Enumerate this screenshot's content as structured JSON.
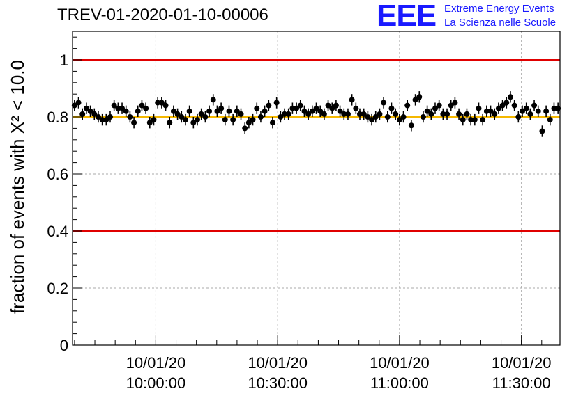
{
  "title": "TREV-01-2020-01-10-00006",
  "logo": {
    "mark": "EEE",
    "line1": "Extreme Energy Events",
    "line2": "La Scienza nelle Scuole",
    "color": "#1a1aff"
  },
  "chart_data": {
    "type": "scatter",
    "title": "TREV-01-2020-01-10-00006",
    "ylabel": "fraction of events with X² < 10.0",
    "xlabel": "",
    "ylim": [
      0,
      1.1
    ],
    "xlim_minutes_from_10_00": [
      -20.5,
      99.5
    ],
    "grid": true,
    "y_ticks": [
      "0",
      "0.2",
      "0.4",
      "0.6",
      "0.8",
      "1"
    ],
    "x_ticks": [
      {
        "minute": 0,
        "date": "10/01/20",
        "time": "10:00:00"
      },
      {
        "minute": 30,
        "date": "10/01/20",
        "time": "10:30:00"
      },
      {
        "minute": 60,
        "date": "10/01/20",
        "time": "11:00:00"
      },
      {
        "minute": 90,
        "date": "10/01/20",
        "time": "11:30:00"
      }
    ],
    "reference_lines": [
      {
        "y": 1.0,
        "color": "#e00000"
      },
      {
        "y": 0.4,
        "color": "#e00000"
      },
      {
        "y": 0.8,
        "color": "#f5b800"
      }
    ],
    "error": 0.02,
    "series": [
      {
        "values": [
          0.84,
          0.85,
          0.81,
          0.83,
          0.82,
          0.81,
          0.8,
          0.79,
          0.79,
          0.8,
          0.84,
          0.83,
          0.83,
          0.82,
          0.8,
          0.78,
          0.82,
          0.84,
          0.83,
          0.78,
          0.79,
          0.85,
          0.85,
          0.84,
          0.78,
          0.82,
          0.81,
          0.8,
          0.79,
          0.82,
          0.78,
          0.79,
          0.81,
          0.8,
          0.82,
          0.86,
          0.82,
          0.83,
          0.79,
          0.82,
          0.79,
          0.82,
          0.81,
          0.76,
          0.78,
          0.79,
          0.83,
          0.8,
          0.82,
          0.84,
          0.78,
          0.85,
          0.8,
          0.81,
          0.81,
          0.83,
          0.83,
          0.84,
          0.82,
          0.81,
          0.82,
          0.83,
          0.82,
          0.81,
          0.84,
          0.83,
          0.84,
          0.82,
          0.81,
          0.81,
          0.86,
          0.83,
          0.81,
          0.81,
          0.8,
          0.79,
          0.8,
          0.81,
          0.85,
          0.8,
          0.83,
          0.81,
          0.79,
          0.8,
          0.84,
          0.77,
          0.86,
          0.87,
          0.8,
          0.82,
          0.81,
          0.83,
          0.84,
          0.81,
          0.81,
          0.84,
          0.85,
          0.81,
          0.79,
          0.81,
          0.79,
          0.79,
          0.83,
          0.79,
          0.82,
          0.82,
          0.81,
          0.83,
          0.84,
          0.85,
          0.87,
          0.84,
          0.8,
          0.82,
          0.83,
          0.81,
          0.84,
          0.82,
          0.75,
          0.82,
          0.79,
          0.83,
          0.83
        ]
      }
    ]
  }
}
